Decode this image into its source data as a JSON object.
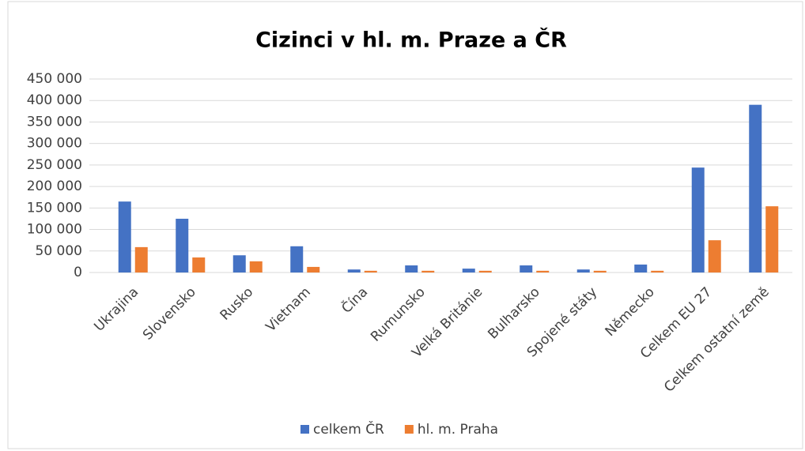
{
  "chart_data": {
    "type": "bar",
    "title": "Cizinci v hl. m. Praze a ČR",
    "categories": [
      "Ukrajina",
      "Slovensko",
      "Rusko",
      "Vietnam",
      "Čína",
      "Rumunsko",
      "Velká Británie",
      "Bulharsko",
      "Spojené státy",
      "Německo",
      "Celkem EU 27",
      "Celkem ostatní země"
    ],
    "series": [
      {
        "name": "celkem ČR",
        "color": "#4472c4",
        "values": [
          165000,
          125000,
          40000,
          61000,
          7000,
          16500,
          9000,
          16500,
          7000,
          18500,
          244000,
          390000
        ]
      },
      {
        "name": "hl. m. Praha",
        "color": "#ed7d31",
        "values": [
          59000,
          35000,
          26000,
          13000,
          4000,
          4000,
          4000,
          4000,
          4000,
          4000,
          75000,
          154000
        ]
      }
    ],
    "ylim": [
      0,
      450000
    ],
    "yticks": [
      0,
      {
        "value": 50000,
        "label": "50 000"
      },
      {
        "value": 100000,
        "label": "100 000"
      },
      {
        "value": 150000,
        "label": "150 000"
      },
      {
        "value": 200000,
        "label": "200 000"
      },
      {
        "value": 250000,
        "label": "250 000"
      },
      {
        "value": 300000,
        "label": "300 000"
      },
      {
        "value": 350000,
        "label": "350 000"
      },
      {
        "value": 400000,
        "label": "400 000"
      },
      {
        "value": 450000,
        "label": "450 000"
      }
    ],
    "grid": true,
    "legend": "bottom"
  }
}
